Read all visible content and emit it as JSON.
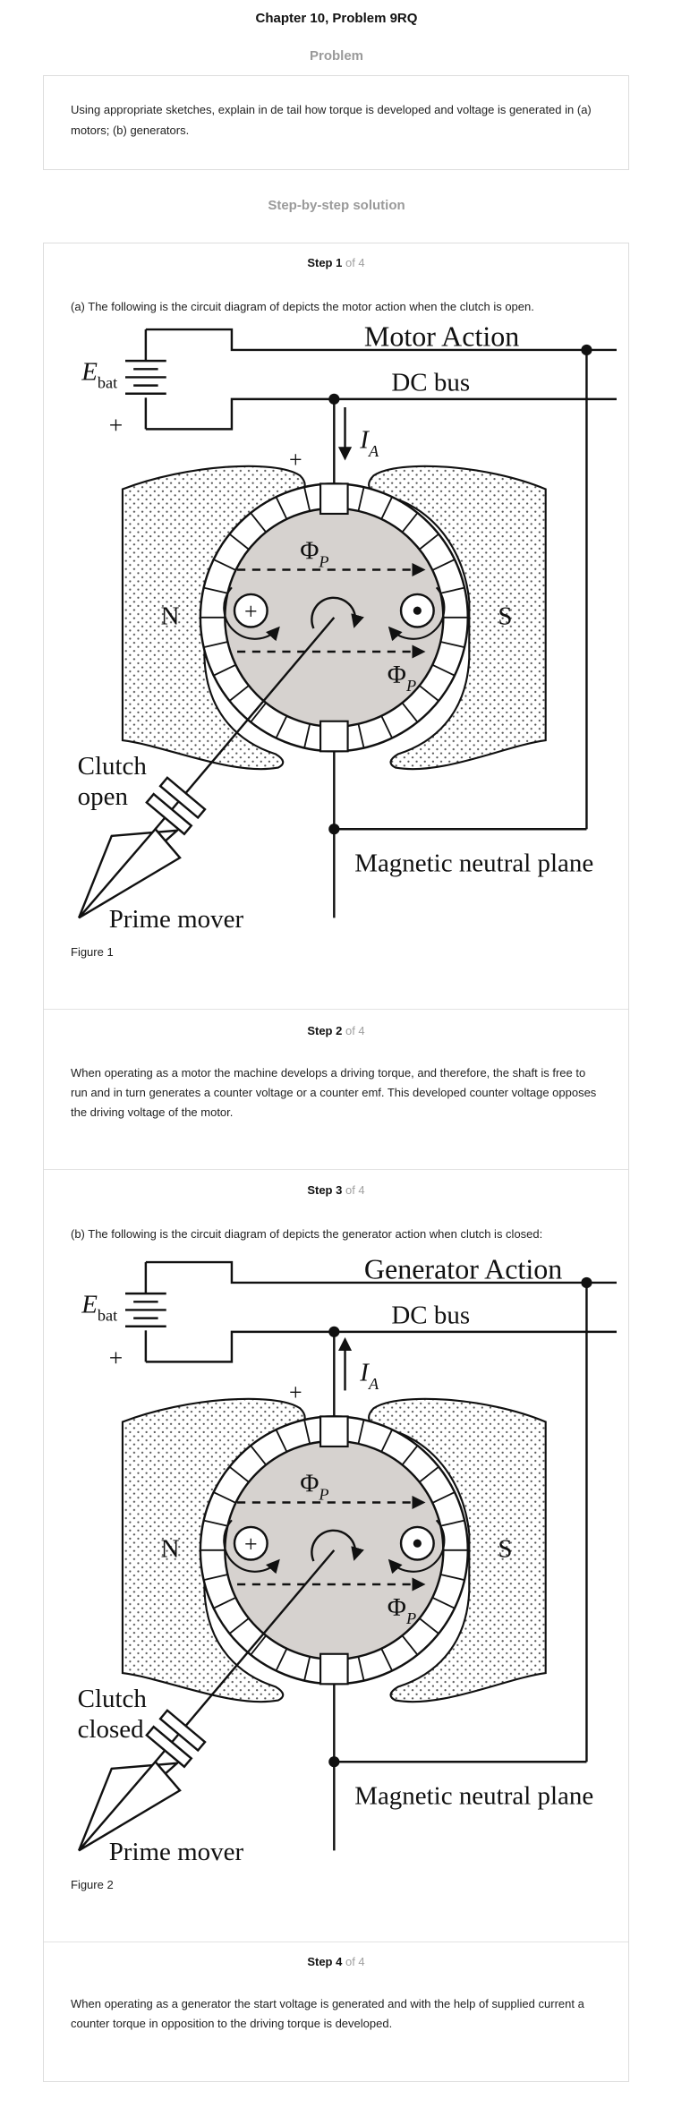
{
  "header": {
    "title": "Chapter 10, Problem 9RQ"
  },
  "problem": {
    "heading": "Problem",
    "text": "Using appropriate sketches, explain in de tail how torque is developed and voltage is generated in (a) motors; (b) generators."
  },
  "solution": {
    "heading": "Step-by-step solution",
    "steps": [
      {
        "label": "Step 1",
        "of": "of 4",
        "text": "(a) The following is the circuit diagram of depicts the motor action when the clutch is open.",
        "figure": {
          "title": "Motor Action",
          "bus": "DC bus",
          "battery_label": "E",
          "battery_sub": "bat",
          "plus": "+",
          "current": "I",
          "current_sub": "A",
          "current_direction": "down",
          "brush_plus": "+",
          "flux": "Φ",
          "flux_sub": "P",
          "north": "N",
          "south": "S",
          "clutch_line1": "Clutch",
          "clutch_line2": "open",
          "prime_mover": "Prime mover",
          "neutral_plane": "Magnetic neutral plane",
          "caption": "Figure 1"
        }
      },
      {
        "label": "Step 2",
        "of": "of 4",
        "text": "When operating as a motor the machine develops a driving torque, and therefore, the shaft is free to run and in turn generates a counter voltage or a counter emf. This developed counter voltage opposes the driving voltage of the motor."
      },
      {
        "label": "Step 3",
        "of": "of 4",
        "text": "(b) The following is the circuit diagram of depicts the generator action when clutch is closed:",
        "figure": {
          "title": "Generator Action",
          "bus": "DC bus",
          "battery_label": "E",
          "battery_sub": "bat",
          "plus": "+",
          "current": "I",
          "current_sub": "A",
          "current_direction": "up",
          "brush_plus": "+",
          "flux": "Φ",
          "flux_sub": "P",
          "north": "N",
          "south": "S",
          "clutch_line1": "Clutch",
          "clutch_line2": "closed",
          "prime_mover": "Prime mover",
          "neutral_plane": "Magnetic neutral plane",
          "caption": "Figure 2"
        }
      },
      {
        "label": "Step 4",
        "of": "of 4",
        "text": "When operating as a generator the start voltage is generated and with the help of supplied current a counter torque in opposition to the driving torque is developed."
      }
    ]
  },
  "colors": {
    "heading_grey": "#9a9a9a",
    "border": "#dddddd",
    "rotor_fill": "#d6d2cf",
    "stipple": "#555555"
  }
}
